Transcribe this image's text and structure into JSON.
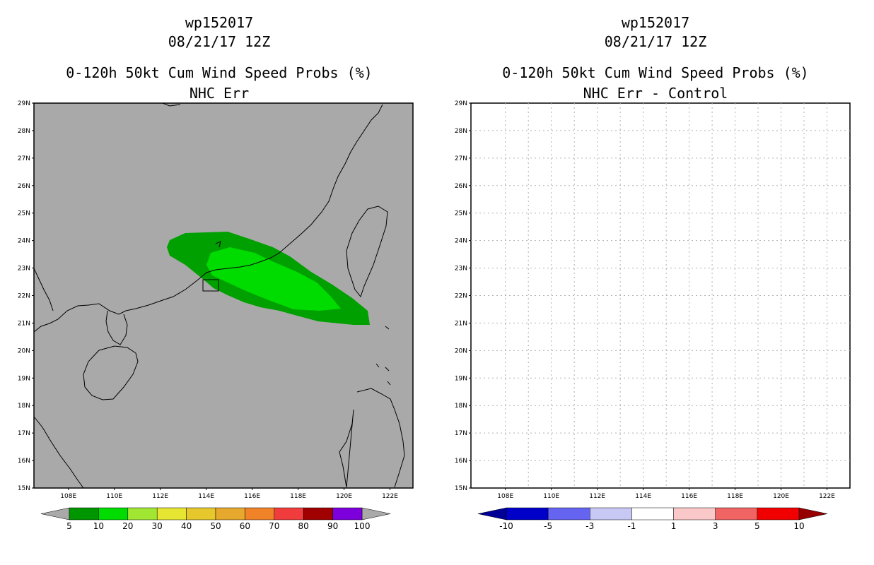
{
  "chart_data": [
    {
      "type": "map",
      "title_lines": [
        "wp152017",
        "08/21/17 12Z"
      ],
      "subtitle_lines": [
        "0-120h 50kt Cum Wind Speed Probs (%)",
        "NHC Err"
      ],
      "lon_range": [
        106.5,
        123.0
      ],
      "lat_range": [
        15,
        29
      ],
      "x_tick_labels": [
        "108E",
        "110E",
        "112E",
        "114E",
        "116E",
        "118E",
        "120E",
        "122E"
      ],
      "y_tick_labels": [
        "15N",
        "16N",
        "17N",
        "18N",
        "19N",
        "20N",
        "21N",
        "22N",
        "23N",
        "24N",
        "25N",
        "26N",
        "27N",
        "28N",
        "29N"
      ],
      "background_color": "#a9a9a9",
      "contours": [
        {
          "level": "5-10",
          "color": "#00a000",
          "region": "outer probability swath"
        },
        {
          "level": "10-20",
          "color": "#00dc00",
          "region": "inner probability swath"
        }
      ],
      "colorbar": {
        "labels": [
          "5",
          "10",
          "20",
          "30",
          "40",
          "50",
          "60",
          "70",
          "80",
          "90",
          "100"
        ],
        "colors": [
          "#009600",
          "#00dc00",
          "#a0e632",
          "#e6e632",
          "#e6c82d",
          "#e6a82d",
          "#f08228",
          "#f03c3c",
          "#a00000",
          "#7d00dc"
        ],
        "under_color": "#a9a9a9",
        "over_color": "#a9a9a9"
      }
    },
    {
      "type": "map",
      "title_lines": [
        "wp152017",
        "08/21/17 12Z"
      ],
      "subtitle_lines": [
        "0-120h 50kt Cum Wind Speed Probs (%)",
        "NHC Err - Control"
      ],
      "lon_range": [
        106.5,
        123.0
      ],
      "lat_range": [
        15,
        29
      ],
      "x_tick_labels": [
        "108E",
        "110E",
        "112E",
        "114E",
        "116E",
        "118E",
        "120E",
        "122E"
      ],
      "y_tick_labels": [
        "15N",
        "16N",
        "17N",
        "18N",
        "19N",
        "20N",
        "21N",
        "22N",
        "23N",
        "24N",
        "25N",
        "26N",
        "27N",
        "28N",
        "29N"
      ],
      "background_color": "#ffffff",
      "grid": true,
      "colorbar": {
        "labels": [
          "-10",
          "-5",
          "-3",
          "-1",
          "1",
          "3",
          "5",
          "10"
        ],
        "colors": [
          "#0000c8",
          "#6464f0",
          "#c8c8f5",
          "#ffffff",
          "#fac8c8",
          "#f06464",
          "#f00000"
        ],
        "under_color": "#000096",
        "over_color": "#960000"
      }
    }
  ]
}
